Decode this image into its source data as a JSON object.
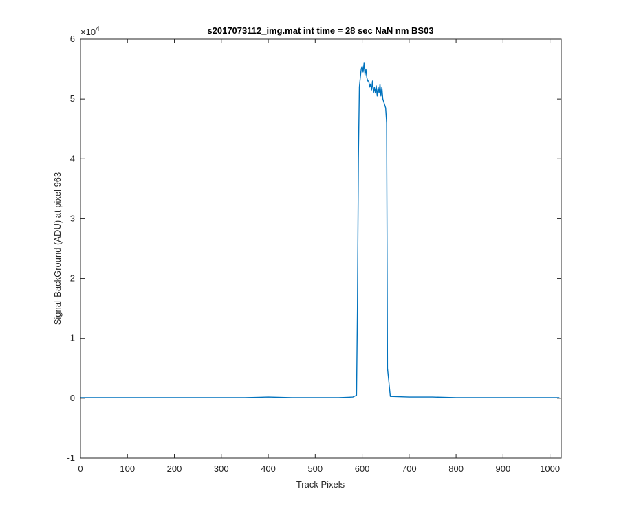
{
  "chart_data": {
    "type": "line",
    "title": "s2017073112_img.mat int time = 28 sec  NaN nm BS03",
    "xlabel": "Track Pixels",
    "ylabel": "Signal-BackGround (ADU) at pixel 963",
    "xlim": [
      0,
      1024
    ],
    "ylim": [
      -1,
      6
    ],
    "y_exponent_label": "×10",
    "y_exponent_power": "4",
    "y_scale_factor": 10000,
    "xticks": [
      0,
      100,
      200,
      300,
      400,
      500,
      600,
      700,
      800,
      900,
      1000
    ],
    "yticks": [
      -1,
      0,
      1,
      2,
      3,
      4,
      5,
      6
    ],
    "grid": false,
    "line_color": "#0072BD",
    "series": [
      {
        "x": [
          0,
          50,
          100,
          150,
          200,
          250,
          300,
          350,
          400,
          450,
          500,
          550,
          580,
          588,
          590,
          592,
          594,
          596,
          598,
          600,
          602,
          604,
          606,
          608,
          610,
          612,
          614,
          616,
          618,
          620,
          622,
          624,
          626,
          628,
          630,
          632,
          634,
          636,
          638,
          640,
          642,
          644,
          646,
          648,
          650,
          652,
          654,
          660,
          700,
          750,
          800,
          850,
          900,
          950,
          1000,
          1020
        ],
        "y": [
          0.01,
          0.01,
          0.01,
          0.01,
          0.01,
          0.01,
          0.01,
          0.01,
          0.02,
          0.01,
          0.01,
          0.01,
          0.02,
          0.05,
          1.5,
          4.0,
          5.2,
          5.35,
          5.5,
          5.55,
          5.45,
          5.6,
          5.4,
          5.5,
          5.35,
          5.3,
          5.3,
          5.2,
          5.25,
          5.15,
          5.3,
          5.1,
          5.2,
          5.1,
          5.22,
          5.05,
          5.2,
          5.1,
          5.25,
          5.05,
          5.2,
          5.0,
          4.95,
          4.9,
          4.85,
          4.6,
          0.5,
          0.03,
          0.02,
          0.02,
          0.01,
          0.01,
          0.01,
          0.01,
          0.01,
          0.01
        ]
      }
    ]
  }
}
